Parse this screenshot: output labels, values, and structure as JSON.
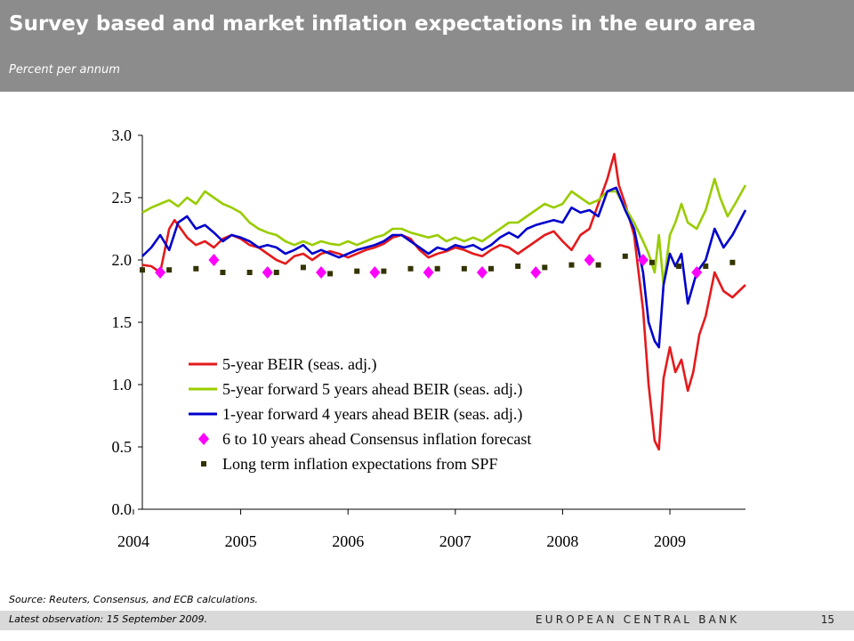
{
  "header": {
    "title": "Survey based and market inflation expectations in the euro area",
    "subtitle": "Percent per annum"
  },
  "footer": {
    "source": "Source: Reuters, Consensus, and ECB calculations.",
    "latest": "Latest observation: 15 September 2009.",
    "bank": "EUROPEAN CENTRAL BANK",
    "page": "15"
  },
  "colors": {
    "header_bg": "#8c8c8c",
    "footer_bg": "#d9d9d9",
    "red": "#e41a1c",
    "green": "#99cc00",
    "blue": "#0000cc",
    "magenta": "#ff00ff",
    "olive": "#333300"
  },
  "chart_data": {
    "type": "line",
    "title": "",
    "xlabel": "",
    "ylabel": "",
    "ylim": [
      0.0,
      3.0
    ],
    "xlim": [
      "2004-02-01",
      "2009-09-15"
    ],
    "ytick_labels": [
      "0.0",
      "0.5",
      "1.0",
      "1.5",
      "2.0",
      "2.5",
      "3.0"
    ],
    "xtick_labels": [
      "2004",
      "2005",
      "2006",
      "2007",
      "2008",
      "2009"
    ],
    "legend_position": "bottom-left",
    "series": [
      {
        "name": "5-year BEIR (seas. adj.)",
        "color": "#e41a1c",
        "marker": "line",
        "points": [
          [
            "2004-02-01",
            1.96
          ],
          [
            "2004-03-01",
            1.95
          ],
          [
            "2004-04-01",
            1.9
          ],
          [
            "2004-05-01",
            2.25
          ],
          [
            "2004-05-20",
            2.32
          ],
          [
            "2004-07-01",
            2.18
          ],
          [
            "2004-08-01",
            2.12
          ],
          [
            "2004-09-01",
            2.15
          ],
          [
            "2004-10-01",
            2.1
          ],
          [
            "2004-11-01",
            2.17
          ],
          [
            "2004-12-01",
            2.2
          ],
          [
            "2005-01-01",
            2.17
          ],
          [
            "2005-02-01",
            2.12
          ],
          [
            "2005-03-01",
            2.1
          ],
          [
            "2005-04-01",
            2.05
          ],
          [
            "2005-05-01",
            2.0
          ],
          [
            "2005-06-01",
            1.97
          ],
          [
            "2005-07-01",
            2.03
          ],
          [
            "2005-08-01",
            2.05
          ],
          [
            "2005-09-01",
            2.0
          ],
          [
            "2005-10-01",
            2.05
          ],
          [
            "2005-11-01",
            2.07
          ],
          [
            "2005-12-01",
            2.05
          ],
          [
            "2006-01-01",
            2.02
          ],
          [
            "2006-02-01",
            2.05
          ],
          [
            "2006-03-01",
            2.08
          ],
          [
            "2006-04-01",
            2.1
          ],
          [
            "2006-05-01",
            2.13
          ],
          [
            "2006-06-01",
            2.18
          ],
          [
            "2006-07-01",
            2.2
          ],
          [
            "2006-08-01",
            2.17
          ],
          [
            "2006-09-01",
            2.08
          ],
          [
            "2006-10-01",
            2.02
          ],
          [
            "2006-11-01",
            2.05
          ],
          [
            "2006-12-01",
            2.07
          ],
          [
            "2007-01-01",
            2.1
          ],
          [
            "2007-02-01",
            2.08
          ],
          [
            "2007-03-01",
            2.05
          ],
          [
            "2007-04-01",
            2.03
          ],
          [
            "2007-05-01",
            2.08
          ],
          [
            "2007-06-01",
            2.12
          ],
          [
            "2007-07-01",
            2.1
          ],
          [
            "2007-08-01",
            2.05
          ],
          [
            "2007-09-01",
            2.1
          ],
          [
            "2007-10-01",
            2.15
          ],
          [
            "2007-11-01",
            2.2
          ],
          [
            "2007-12-01",
            2.23
          ],
          [
            "2008-01-01",
            2.15
          ],
          [
            "2008-02-01",
            2.08
          ],
          [
            "2008-03-01",
            2.2
          ],
          [
            "2008-04-01",
            2.25
          ],
          [
            "2008-05-01",
            2.45
          ],
          [
            "2008-06-01",
            2.65
          ],
          [
            "2008-06-25",
            2.85
          ],
          [
            "2008-07-10",
            2.6
          ],
          [
            "2008-08-01",
            2.45
          ],
          [
            "2008-09-01",
            2.2
          ],
          [
            "2008-10-01",
            1.6
          ],
          [
            "2008-10-20",
            1.0
          ],
          [
            "2008-11-10",
            0.55
          ],
          [
            "2008-11-25",
            0.48
          ],
          [
            "2008-12-10",
            1.05
          ],
          [
            "2009-01-01",
            1.3
          ],
          [
            "2009-01-20",
            1.1
          ],
          [
            "2009-02-10",
            1.2
          ],
          [
            "2009-03-01",
            0.95
          ],
          [
            "2009-03-20",
            1.1
          ],
          [
            "2009-04-10",
            1.4
          ],
          [
            "2009-05-01",
            1.55
          ],
          [
            "2009-06-01",
            1.9
          ],
          [
            "2009-07-01",
            1.75
          ],
          [
            "2009-08-01",
            1.7
          ],
          [
            "2009-09-15",
            1.8
          ]
        ]
      },
      {
        "name": "5-year forward 5 years ahead BEIR (seas. adj.)",
        "color": "#99cc00",
        "marker": "line",
        "points": [
          [
            "2004-02-01",
            2.38
          ],
          [
            "2004-03-01",
            2.42
          ],
          [
            "2004-04-01",
            2.45
          ],
          [
            "2004-05-01",
            2.48
          ],
          [
            "2004-06-01",
            2.43
          ],
          [
            "2004-07-01",
            2.5
          ],
          [
            "2004-08-01",
            2.45
          ],
          [
            "2004-09-01",
            2.55
          ],
          [
            "2004-10-01",
            2.5
          ],
          [
            "2004-11-01",
            2.45
          ],
          [
            "2004-12-01",
            2.42
          ],
          [
            "2005-01-01",
            2.38
          ],
          [
            "2005-02-01",
            2.3
          ],
          [
            "2005-03-01",
            2.25
          ],
          [
            "2005-04-01",
            2.22
          ],
          [
            "2005-05-01",
            2.2
          ],
          [
            "2005-06-01",
            2.15
          ],
          [
            "2005-07-01",
            2.12
          ],
          [
            "2005-08-01",
            2.15
          ],
          [
            "2005-09-01",
            2.12
          ],
          [
            "2005-10-01",
            2.15
          ],
          [
            "2005-11-01",
            2.13
          ],
          [
            "2005-12-01",
            2.12
          ],
          [
            "2006-01-01",
            2.15
          ],
          [
            "2006-02-01",
            2.12
          ],
          [
            "2006-03-01",
            2.15
          ],
          [
            "2006-04-01",
            2.18
          ],
          [
            "2006-05-01",
            2.2
          ],
          [
            "2006-06-01",
            2.25
          ],
          [
            "2006-07-01",
            2.25
          ],
          [
            "2006-08-01",
            2.22
          ],
          [
            "2006-09-01",
            2.2
          ],
          [
            "2006-10-01",
            2.18
          ],
          [
            "2006-11-01",
            2.2
          ],
          [
            "2006-12-01",
            2.15
          ],
          [
            "2007-01-01",
            2.18
          ],
          [
            "2007-02-01",
            2.15
          ],
          [
            "2007-03-01",
            2.18
          ],
          [
            "2007-04-01",
            2.15
          ],
          [
            "2007-05-01",
            2.2
          ],
          [
            "2007-06-01",
            2.25
          ],
          [
            "2007-07-01",
            2.3
          ],
          [
            "2007-08-01",
            2.3
          ],
          [
            "2007-09-01",
            2.35
          ],
          [
            "2007-10-01",
            2.4
          ],
          [
            "2007-11-01",
            2.45
          ],
          [
            "2007-12-01",
            2.42
          ],
          [
            "2008-01-01",
            2.45
          ],
          [
            "2008-02-01",
            2.55
          ],
          [
            "2008-03-01",
            2.5
          ],
          [
            "2008-04-01",
            2.45
          ],
          [
            "2008-05-01",
            2.48
          ],
          [
            "2008-06-01",
            2.55
          ],
          [
            "2008-07-01",
            2.55
          ],
          [
            "2008-08-01",
            2.42
          ],
          [
            "2008-09-01",
            2.3
          ],
          [
            "2008-10-01",
            2.15
          ],
          [
            "2008-10-20",
            2.05
          ],
          [
            "2008-11-10",
            1.9
          ],
          [
            "2008-11-25",
            2.2
          ],
          [
            "2008-12-10",
            1.8
          ],
          [
            "2009-01-01",
            2.2
          ],
          [
            "2009-01-20",
            2.3
          ],
          [
            "2009-02-10",
            2.45
          ],
          [
            "2009-03-01",
            2.3
          ],
          [
            "2009-04-01",
            2.25
          ],
          [
            "2009-05-01",
            2.4
          ],
          [
            "2009-06-01",
            2.65
          ],
          [
            "2009-06-20",
            2.5
          ],
          [
            "2009-07-15",
            2.35
          ],
          [
            "2009-08-10",
            2.45
          ],
          [
            "2009-09-15",
            2.6
          ]
        ]
      },
      {
        "name": "1-year forward 4 years ahead BEIR (seas. adj.)",
        "color": "#0000cc",
        "marker": "line",
        "points": [
          [
            "2004-02-01",
            2.03
          ],
          [
            "2004-03-01",
            2.1
          ],
          [
            "2004-04-01",
            2.2
          ],
          [
            "2004-05-01",
            2.08
          ],
          [
            "2004-06-01",
            2.3
          ],
          [
            "2004-07-01",
            2.35
          ],
          [
            "2004-08-01",
            2.25
          ],
          [
            "2004-09-01",
            2.28
          ],
          [
            "2004-10-01",
            2.22
          ],
          [
            "2004-11-01",
            2.15
          ],
          [
            "2004-12-01",
            2.2
          ],
          [
            "2005-01-01",
            2.18
          ],
          [
            "2005-02-01",
            2.15
          ],
          [
            "2005-03-01",
            2.1
          ],
          [
            "2005-04-01",
            2.12
          ],
          [
            "2005-05-01",
            2.1
          ],
          [
            "2005-06-01",
            2.05
          ],
          [
            "2005-07-01",
            2.08
          ],
          [
            "2005-08-01",
            2.12
          ],
          [
            "2005-09-01",
            2.05
          ],
          [
            "2005-10-01",
            2.08
          ],
          [
            "2005-11-01",
            2.05
          ],
          [
            "2005-12-01",
            2.02
          ],
          [
            "2006-01-01",
            2.05
          ],
          [
            "2006-02-01",
            2.08
          ],
          [
            "2006-03-01",
            2.1
          ],
          [
            "2006-04-01",
            2.12
          ],
          [
            "2006-05-01",
            2.15
          ],
          [
            "2006-06-01",
            2.2
          ],
          [
            "2006-07-01",
            2.2
          ],
          [
            "2006-08-01",
            2.15
          ],
          [
            "2006-09-01",
            2.1
          ],
          [
            "2006-10-01",
            2.05
          ],
          [
            "2006-11-01",
            2.1
          ],
          [
            "2006-12-01",
            2.08
          ],
          [
            "2007-01-01",
            2.12
          ],
          [
            "2007-02-01",
            2.1
          ],
          [
            "2007-03-01",
            2.12
          ],
          [
            "2007-04-01",
            2.08
          ],
          [
            "2007-05-01",
            2.12
          ],
          [
            "2007-06-01",
            2.18
          ],
          [
            "2007-07-01",
            2.22
          ],
          [
            "2007-08-01",
            2.18
          ],
          [
            "2007-09-01",
            2.25
          ],
          [
            "2007-10-01",
            2.28
          ],
          [
            "2007-11-01",
            2.3
          ],
          [
            "2007-12-01",
            2.32
          ],
          [
            "2008-01-01",
            2.3
          ],
          [
            "2008-02-01",
            2.42
          ],
          [
            "2008-03-01",
            2.38
          ],
          [
            "2008-04-01",
            2.4
          ],
          [
            "2008-05-01",
            2.35
          ],
          [
            "2008-06-01",
            2.55
          ],
          [
            "2008-07-01",
            2.58
          ],
          [
            "2008-08-01",
            2.4
          ],
          [
            "2008-09-01",
            2.25
          ],
          [
            "2008-10-01",
            1.9
          ],
          [
            "2008-10-20",
            1.5
          ],
          [
            "2008-11-10",
            1.35
          ],
          [
            "2008-11-25",
            1.3
          ],
          [
            "2008-12-10",
            1.8
          ],
          [
            "2009-01-01",
            2.05
          ],
          [
            "2009-01-20",
            1.95
          ],
          [
            "2009-02-10",
            2.05
          ],
          [
            "2009-03-01",
            1.65
          ],
          [
            "2009-04-01",
            1.9
          ],
          [
            "2009-05-01",
            2.0
          ],
          [
            "2009-06-01",
            2.25
          ],
          [
            "2009-07-01",
            2.1
          ],
          [
            "2009-08-01",
            2.2
          ],
          [
            "2009-09-15",
            2.4
          ]
        ]
      },
      {
        "name": "6 to 10 years ahead Consensus inflation forecast",
        "color": "#ff00ff",
        "marker": "diamond",
        "points": [
          [
            "2004-04-01",
            1.9
          ],
          [
            "2004-10-01",
            2.0
          ],
          [
            "2005-04-01",
            1.9
          ],
          [
            "2005-10-01",
            1.9
          ],
          [
            "2006-04-01",
            1.9
          ],
          [
            "2006-10-01",
            1.9
          ],
          [
            "2007-04-01",
            1.9
          ],
          [
            "2007-10-01",
            1.9
          ],
          [
            "2008-04-01",
            2.0
          ],
          [
            "2008-10-01",
            2.0
          ],
          [
            "2009-04-01",
            1.9
          ]
        ]
      },
      {
        "name": "Long term inflation expectations from SPF",
        "color": "#333300",
        "marker": "square",
        "points": [
          [
            "2004-02-01",
            1.92
          ],
          [
            "2004-05-01",
            1.92
          ],
          [
            "2004-08-01",
            1.93
          ],
          [
            "2004-11-01",
            1.9
          ],
          [
            "2005-02-01",
            1.9
          ],
          [
            "2005-05-01",
            1.9
          ],
          [
            "2005-08-01",
            1.94
          ],
          [
            "2005-11-01",
            1.89
          ],
          [
            "2006-02-01",
            1.91
          ],
          [
            "2006-05-01",
            1.91
          ],
          [
            "2006-08-01",
            1.93
          ],
          [
            "2006-11-01",
            1.93
          ],
          [
            "2007-02-01",
            1.93
          ],
          [
            "2007-05-01",
            1.93
          ],
          [
            "2007-08-01",
            1.95
          ],
          [
            "2007-11-01",
            1.94
          ],
          [
            "2008-02-01",
            1.96
          ],
          [
            "2008-05-01",
            1.96
          ],
          [
            "2008-08-01",
            2.03
          ],
          [
            "2008-11-01",
            1.98
          ],
          [
            "2009-02-01",
            1.95
          ],
          [
            "2009-05-01",
            1.95
          ],
          [
            "2009-08-01",
            1.98
          ]
        ]
      }
    ]
  }
}
